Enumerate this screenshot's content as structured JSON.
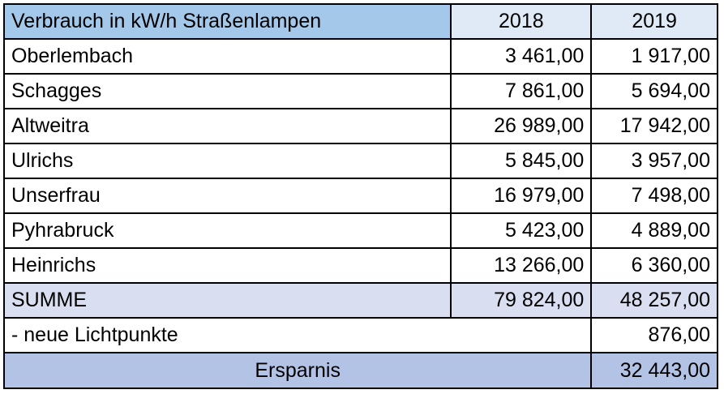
{
  "table": {
    "header": {
      "title": "Verbrauch in kW/h Straßenlampen",
      "years": [
        "2018",
        "2019"
      ]
    },
    "rows": [
      {
        "name": "Oberlembach",
        "v2018": "3 461,00",
        "v2019": "1 917,00"
      },
      {
        "name": "Schagges",
        "v2018": "7 861,00",
        "v2019": "5 694,00"
      },
      {
        "name": "Altweitra",
        "v2018": "26 989,00",
        "v2019": "17 942,00"
      },
      {
        "name": "Ulrichs",
        "v2018": "5 845,00",
        "v2019": "3 957,00"
      },
      {
        "name": "Unserfrau",
        "v2018": "16 979,00",
        "v2019": "7 498,00"
      },
      {
        "name": "Pyhrabruck",
        "v2018": "5 423,00",
        "v2019": "4 889,00"
      },
      {
        "name": "Heinrichs",
        "v2018": "13 266,00",
        "v2019": "6 360,00"
      }
    ],
    "sum": {
      "label": "SUMME",
      "v2018": "79 824,00",
      "v2019": "48 257,00"
    },
    "new_points": {
      "label": "- neue Lichtpunkte",
      "value": "876,00"
    },
    "savings": {
      "label": "Ersparnis",
      "value": "32 443,00"
    },
    "colors": {
      "header_title_bg": "#a4c8e9",
      "header_year_bg": "#dfeaf6",
      "sum_bg": "#d9def0",
      "savings_bg": "#b3c3e6"
    }
  }
}
